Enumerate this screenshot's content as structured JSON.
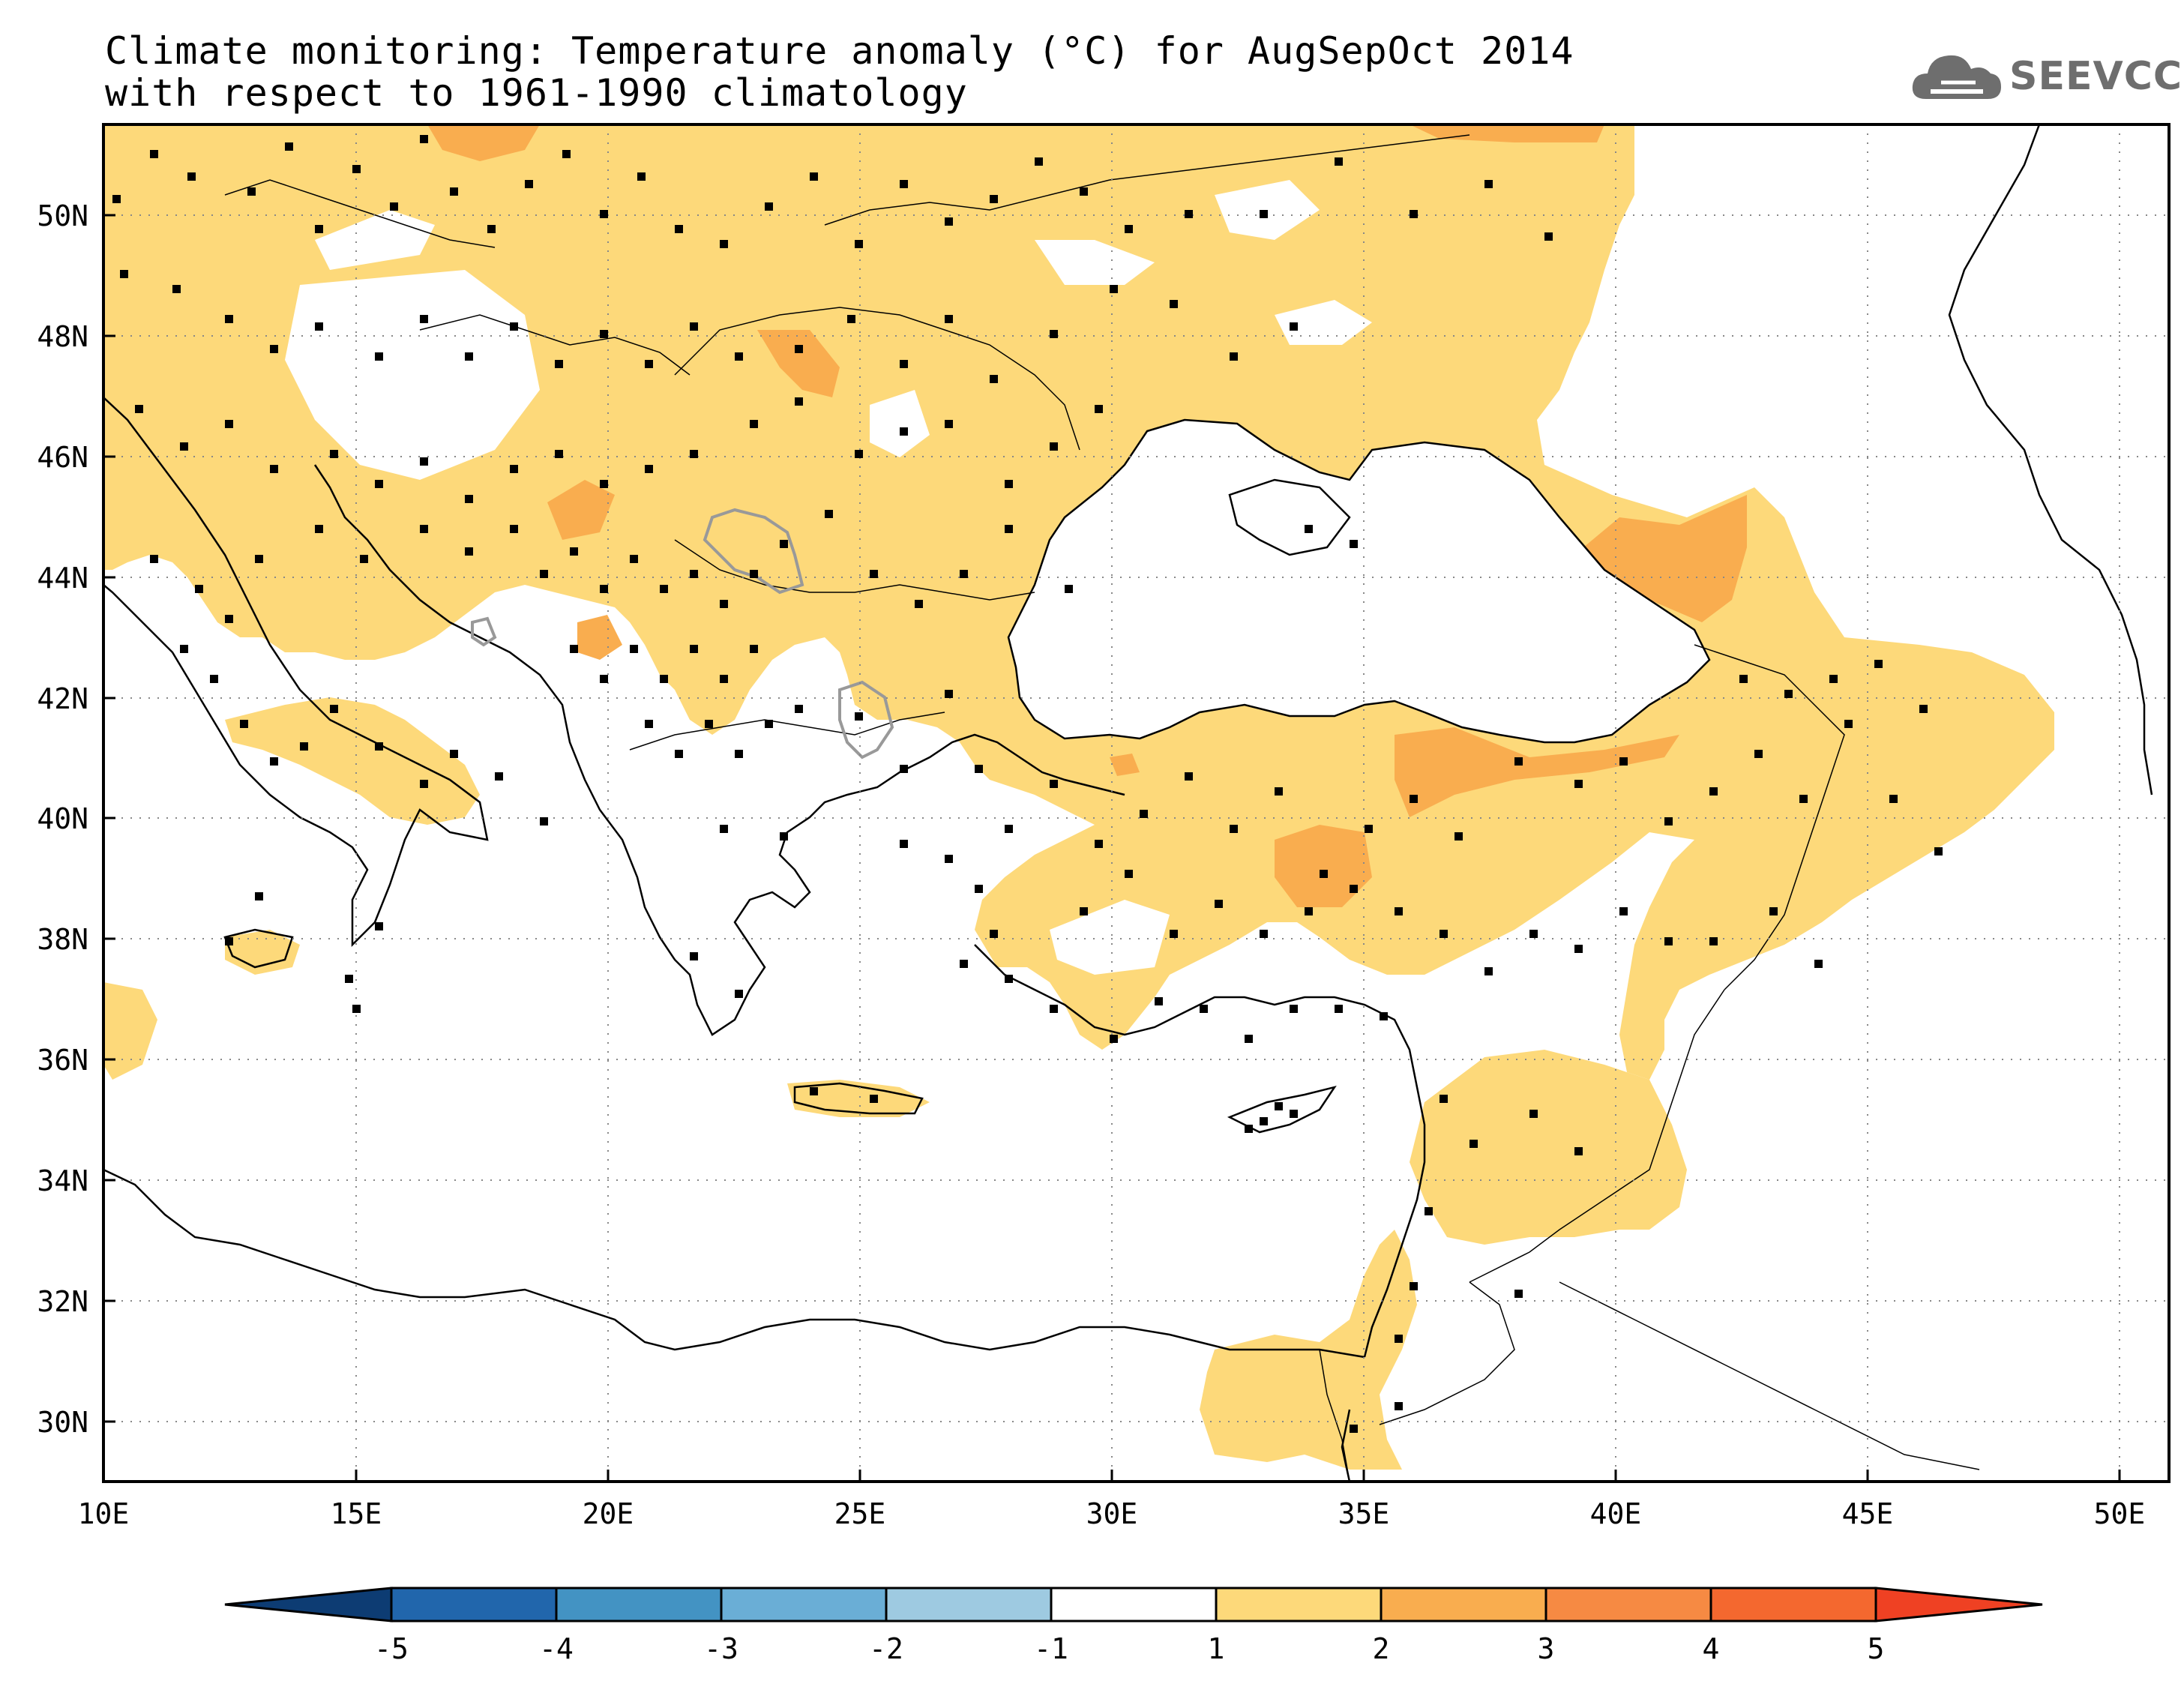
{
  "title": {
    "line1": "Climate monitoring: Temperature anomaly (°C) for AugSepOct 2014",
    "line2": "with respect to 1961-1990 climatology"
  },
  "logo": {
    "text": "SEEVCCC",
    "icon": "cloud-icon"
  },
  "map": {
    "lon_range": [
      10,
      51
    ],
    "lat_range": [
      29,
      51.5
    ],
    "lon_ticks": [
      "10E",
      "15E",
      "20E",
      "25E",
      "30E",
      "35E",
      "40E",
      "45E",
      "50E"
    ],
    "lat_ticks": [
      "30N",
      "32N",
      "34N",
      "36N",
      "38N",
      "40N",
      "42N",
      "44N",
      "46N",
      "48N",
      "50N"
    ],
    "grid": "dotted",
    "colors": {
      "anomaly_1_2": "#fdd97a",
      "anomaly_2_3": "#f9ad4f",
      "coastline": "#000000",
      "significance_contour": "#999999",
      "station_marker": "#000000"
    }
  },
  "colorbar": {
    "ticks": [
      "-5",
      "-4",
      "-3",
      "-2",
      "-1",
      "1",
      "2",
      "3",
      "4",
      "5"
    ],
    "colors": [
      "#0d3c73",
      "#2166ac",
      "#4393c3",
      "#6aaed6",
      "#9ecae1",
      "#ffffff",
      "#fdd97a",
      "#f9ad4f",
      "#f68a43",
      "#f4682f",
      "#ef4123",
      "#d7191c"
    ]
  }
}
